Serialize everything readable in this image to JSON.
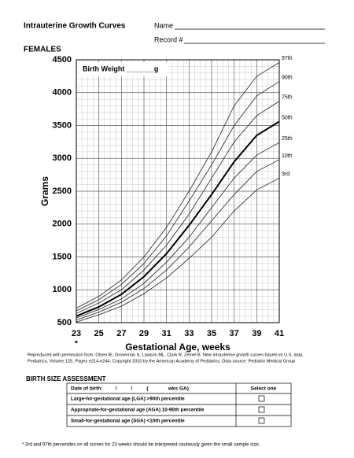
{
  "header": {
    "title": "Intrauterine Growth Curves",
    "name_label": "Name",
    "record_label": "Record #",
    "section": "FEMALES"
  },
  "chart_data": {
    "type": "line",
    "annotation": "Birth Weight _______g",
    "y_label": "Grams",
    "x_label": "Gestational Age, weeks",
    "x_note": "*",
    "x": [
      23,
      25,
      27,
      29,
      31,
      33,
      35,
      37,
      39,
      41
    ],
    "xlim": [
      23,
      41
    ],
    "xticks": [
      23,
      25,
      27,
      29,
      31,
      33,
      35,
      37,
      39,
      41
    ],
    "ylim": [
      500,
      4500
    ],
    "yticks": [
      500,
      1000,
      1500,
      2000,
      2500,
      3000,
      3500,
      4000,
      4500
    ],
    "grid": true,
    "series": [
      {
        "name": "97th",
        "color": "#222",
        "line_width": 0.8,
        "values": [
          720,
          900,
          1150,
          1500,
          1950,
          2500,
          3100,
          3800,
          4250,
          4460
        ]
      },
      {
        "name": "90th",
        "color": "#222",
        "line_width": 0.8,
        "values": [
          680,
          850,
          1080,
          1400,
          1820,
          2350,
          2900,
          3500,
          3950,
          4170
        ]
      },
      {
        "name": "75th",
        "color": "#222",
        "line_width": 0.8,
        "values": [
          640,
          800,
          1000,
          1300,
          1680,
          2150,
          2700,
          3250,
          3650,
          3870
        ]
      },
      {
        "name": "50th",
        "color": "#000",
        "line_width": 2,
        "values": [
          600,
          740,
          930,
          1200,
          1550,
          1980,
          2450,
          2950,
          3350,
          3560
        ]
      },
      {
        "name": "25th",
        "color": "#222",
        "line_width": 0.8,
        "values": [
          570,
          700,
          860,
          1100,
          1420,
          1800,
          2250,
          2700,
          3050,
          3240
        ]
      },
      {
        "name": "10th",
        "color": "#222",
        "line_width": 0.8,
        "values": [
          540,
          660,
          810,
          1020,
          1300,
          1650,
          2050,
          2450,
          2800,
          2980
        ]
      },
      {
        "name": "3rd",
        "color": "#222",
        "line_width": 0.8,
        "values": [
          510,
          620,
          750,
          940,
          1180,
          1480,
          1800,
          2200,
          2520,
          2700
        ]
      }
    ]
  },
  "citation": [
    "Reproduced with permission from: Olsen IE, Groveman S, Lawson ML, Clark R, Zemel B. New intrauterine growth curves based on U.S. data.",
    "Pediatrics, Volume 125, Pages e214-e244. Copyright 2010 by the American Academy of Pediatrics. Data source: Pediatrix Medical Group"
  ],
  "assessment": {
    "title": "BIRTH SIZE ASSESSMENT",
    "header": [
      "Date of birth:         /          /          (              wks GA)",
      "Select one"
    ],
    "rows": [
      "Large-for-gestational age (LGA) >90th percentile",
      "Appropriate-for-gestational age (AGA) 10-90th percentile",
      "Small-for-gestational age (SGA) <10th percentile"
    ]
  },
  "footnote": "* 3rd and 97th percentiles on all curves for 23 weeks should be interpreted cautiously given the small sample size."
}
